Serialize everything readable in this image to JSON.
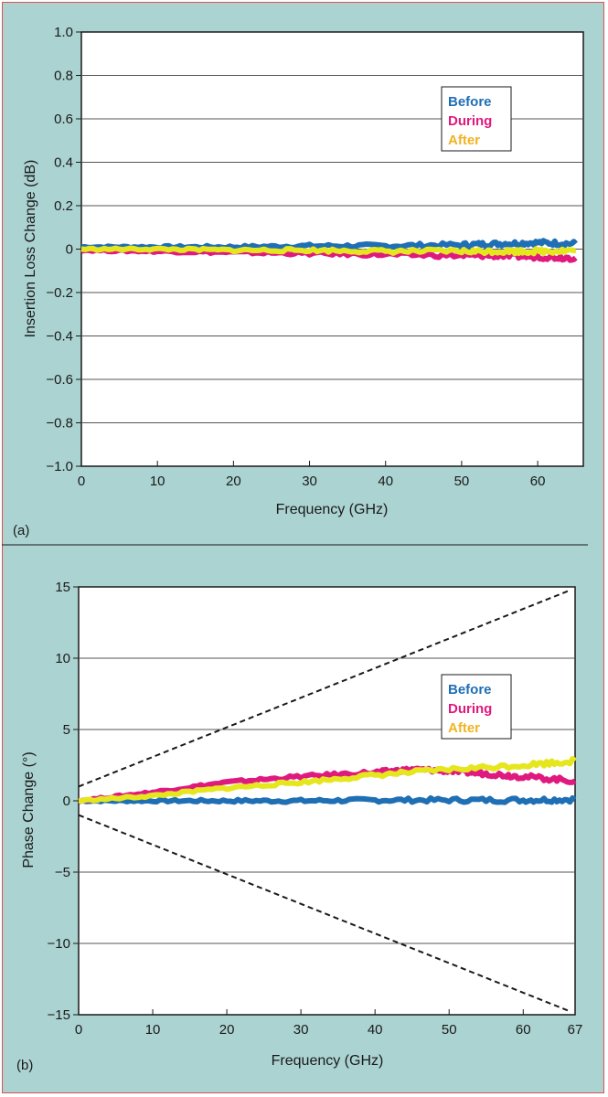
{
  "colors": {
    "background": "#abd3d1",
    "border": "#d9534f",
    "Before": "#1f6fb4",
    "During": "#e0197f",
    "After": "#e6e61f",
    "After_legend_text": "#f0b323"
  },
  "chart_data": [
    {
      "type": "line",
      "panel_label": "(a)",
      "xlabel": "Frequency (GHz)",
      "ylabel": "Insertion Loss Change (dB)",
      "xlim": [
        0,
        66
      ],
      "ylim": [
        -1.0,
        1.0
      ],
      "x_ticks": [
        "0",
        "10",
        "20",
        "30",
        "40",
        "50",
        "60"
      ],
      "y_ticks": [
        "1.0",
        "0.8",
        "0.6",
        "0.4",
        "0.2",
        "0",
        "−0.2",
        "−0.4",
        "−0.6",
        "−0.8",
        "−1.0"
      ],
      "grid": "horizontal",
      "legend": {
        "position": "top-right",
        "entries": [
          "Before",
          "During",
          "After"
        ]
      },
      "series": [
        {
          "name": "Before",
          "x": [
            0,
            10,
            20,
            30,
            40,
            50,
            55,
            60,
            65
          ],
          "y": [
            0.01,
            0.01,
            0.01,
            0.015,
            0.015,
            0.02,
            0.025,
            0.03,
            0.025
          ]
        },
        {
          "name": "During",
          "x": [
            0,
            10,
            20,
            30,
            40,
            50,
            55,
            60,
            65
          ],
          "y": [
            -0.005,
            -0.01,
            -0.015,
            -0.02,
            -0.025,
            -0.03,
            -0.03,
            -0.035,
            -0.04
          ]
        },
        {
          "name": "After",
          "x": [
            0,
            10,
            20,
            30,
            40,
            50,
            55,
            60,
            65
          ],
          "y": [
            0.0,
            0.0,
            -0.005,
            -0.005,
            -0.01,
            -0.01,
            -0.01,
            -0.01,
            -0.005
          ]
        }
      ]
    },
    {
      "type": "line",
      "panel_label": "(b)",
      "xlabel": "Frequency (GHz)",
      "ylabel": "Phase Change (°)",
      "xlim": [
        0,
        67
      ],
      "ylim": [
        -15,
        15
      ],
      "x_ticks": [
        "0",
        "10",
        "20",
        "30",
        "40",
        "50",
        "60",
        "67"
      ],
      "y_ticks": [
        "15",
        "10",
        "5",
        "0",
        "−5",
        "−10",
        "−15"
      ],
      "grid": "horizontal",
      "legend": {
        "position": "top-right",
        "entries": [
          "Before",
          "During",
          "After"
        ]
      },
      "series": [
        {
          "name": "Before",
          "x": [
            0,
            10,
            20,
            30,
            40,
            50,
            60,
            67
          ],
          "y": [
            0,
            0,
            0,
            0,
            0.05,
            0.05,
            0.05,
            0.1
          ]
        },
        {
          "name": "During",
          "x": [
            0,
            10,
            20,
            30,
            40,
            45,
            50,
            55,
            60,
            67
          ],
          "y": [
            0,
            0.6,
            1.3,
            1.7,
            2.0,
            2.2,
            2.1,
            1.9,
            1.7,
            1.4
          ]
        },
        {
          "name": "After",
          "x": [
            0,
            10,
            20,
            30,
            40,
            50,
            60,
            67
          ],
          "y": [
            0,
            0.35,
            0.9,
            1.3,
            1.8,
            2.2,
            2.5,
            2.8
          ]
        },
        {
          "name": "",
          "style": "dashed",
          "x": [
            0,
            66
          ],
          "y": [
            1.0,
            14.7
          ]
        },
        {
          "name": "",
          "style": "dashed",
          "x": [
            0,
            66
          ],
          "y": [
            -1.0,
            -14.7
          ]
        }
      ]
    }
  ]
}
